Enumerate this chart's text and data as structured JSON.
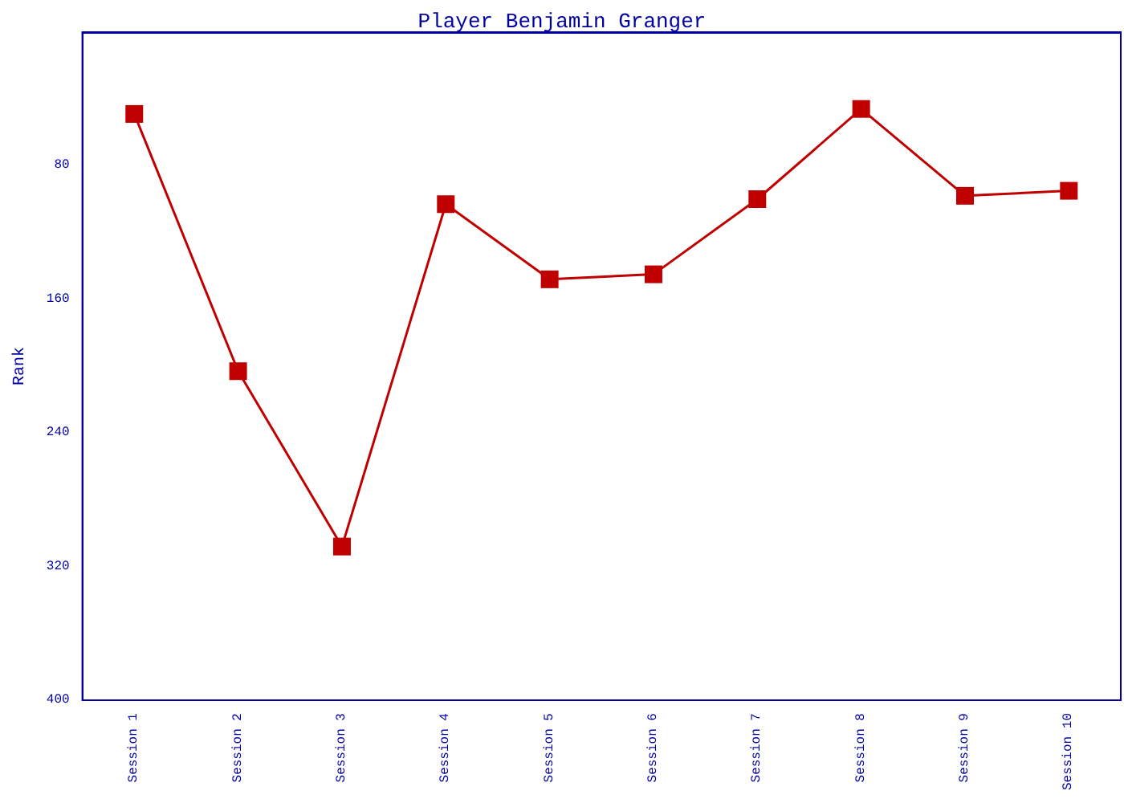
{
  "chart_data": {
    "type": "line",
    "title": "Player Benjamin Granger",
    "ylabel": "Rank",
    "categories": [
      "Session 1",
      "Session 2",
      "Session 3",
      "Session 4",
      "Session 5",
      "Session 6",
      "Session 7",
      "Session 8",
      "Session 9",
      "Session 10"
    ],
    "series": [
      {
        "color": "#c00000",
        "values": [
          49,
          203,
          308,
          103,
          148,
          145,
          100,
          46,
          98,
          95
        ]
      }
    ],
    "ylim": [
      400,
      0
    ],
    "yticks": [
      80,
      160,
      240,
      320,
      400
    ],
    "grid": false,
    "marker": "square",
    "line_style": "solid"
  }
}
